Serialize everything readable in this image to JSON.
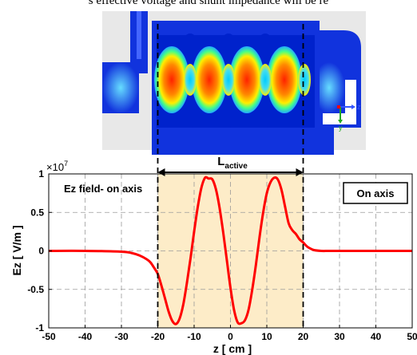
{
  "header_text": "s effective voltage and shunt impedance will be re",
  "chart_data": {
    "type": "line",
    "title": "Ez field- on axis",
    "legend": "On axis",
    "xlabel": "z [ cm ]",
    "ylabel": "Ez [ V/m ]",
    "y_multiplier": "×10",
    "y_multiplier_exp": "7",
    "xlim": [
      -50,
      50
    ],
    "ylim": [
      -1,
      1
    ],
    "x_ticks": [
      -50,
      -40,
      -30,
      -20,
      -10,
      0,
      10,
      20,
      30,
      40,
      50
    ],
    "x_tick_labels": [
      "-50",
      "-40",
      "-30",
      "-20",
      "-10",
      "0",
      "10",
      "20",
      "30",
      "40",
      "50"
    ],
    "y_ticks": [
      -1,
      -0.5,
      0,
      0.5,
      1
    ],
    "y_tick_labels": [
      "-1",
      "-0.5",
      "0",
      "0.5",
      "1"
    ],
    "grid": true,
    "active_region": {
      "label": "L",
      "label_sub": "active",
      "x_start": -20,
      "x_end": 20
    },
    "series": [
      {
        "name": "On axis",
        "color": "#ff0000",
        "x": [
          -50,
          -40,
          -30,
          -27,
          -25,
          -23,
          -22,
          -21,
          -20,
          -19,
          -18,
          -17,
          -16,
          -15,
          -14,
          -13,
          -12,
          -11,
          -10,
          -9,
          -8,
          -7,
          -6,
          -5,
          -4,
          -3,
          -2,
          -1,
          0,
          1,
          2,
          3,
          4,
          5,
          6,
          7,
          8,
          9,
          10,
          11,
          12,
          13,
          14,
          15,
          16,
          17,
          18,
          19,
          20,
          21,
          22,
          23,
          25,
          27,
          30,
          40,
          50
        ],
        "y": [
          0,
          0,
          -0.01,
          -0.03,
          -0.06,
          -0.11,
          -0.15,
          -0.22,
          -0.3,
          -0.45,
          -0.62,
          -0.79,
          -0.91,
          -0.95,
          -0.88,
          -0.7,
          -0.42,
          -0.1,
          0.25,
          0.57,
          0.82,
          0.95,
          0.94,
          0.93,
          0.8,
          0.56,
          0.24,
          -0.12,
          -0.48,
          -0.77,
          -0.93,
          -0.94,
          -0.9,
          -0.76,
          -0.5,
          -0.18,
          0.18,
          0.5,
          0.75,
          0.89,
          0.95,
          0.93,
          0.8,
          0.58,
          0.36,
          0.27,
          0.22,
          0.15,
          0.11,
          0.06,
          0.03,
          0.01,
          0,
          0,
          0,
          0,
          0
        ]
      }
    ]
  },
  "colors": {
    "cavity_blue": "#1133dd",
    "field_red": "#ff0000",
    "active_fill": "#fdecc8"
  },
  "axis_indicator": {
    "x": "z",
    "y": "y"
  }
}
